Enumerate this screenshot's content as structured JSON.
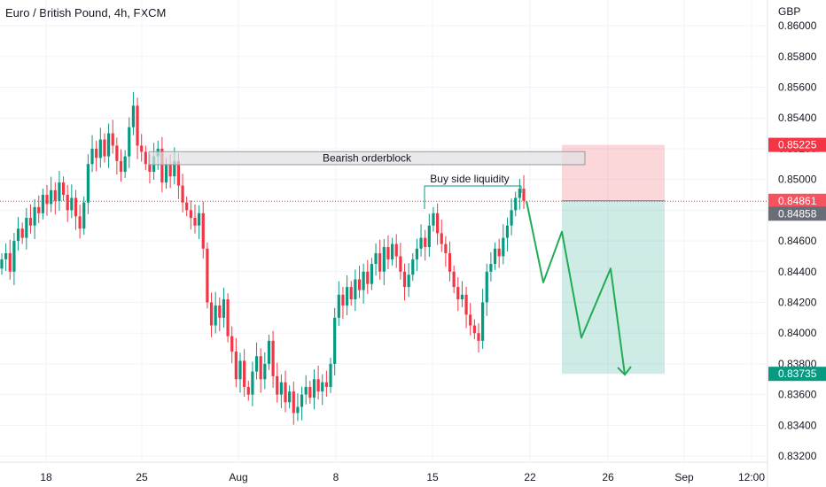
{
  "header": {
    "title": "Euro / British Pound, 4h, FXCM"
  },
  "chart_data": {
    "type": "candlestick",
    "currency_label": "GBP",
    "y_ticks": [
      "0.86000",
      "0.85800",
      "0.85600",
      "0.85400",
      "0.85200",
      "0.85000",
      "0.84800",
      "0.84600",
      "0.84400",
      "0.84200",
      "0.84000",
      "0.83800",
      "0.83600",
      "0.83400",
      "0.83200"
    ],
    "ylim": [
      0.8316,
      0.8611
    ],
    "x_ticks": [
      "18",
      "25",
      "Aug",
      "8",
      "15",
      "22",
      "26",
      "Sep",
      "12:00"
    ],
    "grid": true,
    "price_tags": {
      "stop": {
        "value": 0.85225,
        "label": "0.85225",
        "color": "#f23645"
      },
      "entry": {
        "value": 0.84861,
        "label": "0.84861",
        "color": "#f7525f"
      },
      "current": {
        "value": 0.84858,
        "label": "0.84858",
        "color": "#6a6d78"
      },
      "target": {
        "value": 0.83735,
        "label": "0.83735",
        "color": "#089981"
      }
    },
    "annotations": {
      "orderblock": {
        "text": "Bearish orderblock",
        "top": 0.85181,
        "bottom": 0.85096
      },
      "liquidity": {
        "text": "Buy side liquidity",
        "level": 0.84958
      }
    },
    "position": {
      "side": "short",
      "entry": 0.84861,
      "stop": 0.85225,
      "target": 0.83735
    },
    "projection_y": [
      0.8486,
      0.8433,
      0.8466,
      0.8397,
      0.8442,
      0.8373
    ],
    "candles_close": [
      0.8448,
      0.8452,
      0.844,
      0.846,
      0.8468,
      0.8462,
      0.8475,
      0.847,
      0.8482,
      0.8478,
      0.849,
      0.8484,
      0.8493,
      0.8486,
      0.8498,
      0.849,
      0.848,
      0.8488,
      0.8476,
      0.8468,
      0.8485,
      0.851,
      0.852,
      0.8514,
      0.8526,
      0.8515,
      0.853,
      0.8522,
      0.8512,
      0.8505,
      0.8515,
      0.8534,
      0.8548,
      0.8522,
      0.8518,
      0.851,
      0.8505,
      0.8515,
      0.852,
      0.8498,
      0.851,
      0.8502,
      0.8512,
      0.8496,
      0.8485,
      0.848,
      0.8475,
      0.847,
      0.8478,
      0.8455,
      0.842,
      0.8405,
      0.8418,
      0.841,
      0.8422,
      0.8398,
      0.8388,
      0.837,
      0.8382,
      0.8365,
      0.836,
      0.8375,
      0.8385,
      0.837,
      0.838,
      0.8395,
      0.8372,
      0.836,
      0.8368,
      0.8355,
      0.8362,
      0.8348,
      0.8352,
      0.836,
      0.8365,
      0.8358,
      0.837,
      0.8362,
      0.8368,
      0.8365,
      0.838,
      0.841,
      0.8425,
      0.8418,
      0.843,
      0.8422,
      0.8435,
      0.8428,
      0.844,
      0.8432,
      0.8445,
      0.8452,
      0.844,
      0.8456,
      0.8448,
      0.8458,
      0.845,
      0.844,
      0.843,
      0.8438,
      0.8448,
      0.8455,
      0.8462,
      0.8456,
      0.847,
      0.8478,
      0.8465,
      0.8458,
      0.8452,
      0.844,
      0.843,
      0.8422,
      0.8425,
      0.8412,
      0.8405,
      0.84,
      0.8395,
      0.842,
      0.844,
      0.8445,
      0.8455,
      0.845,
      0.8462,
      0.847,
      0.848,
      0.8488,
      0.8494,
      0.8486
    ]
  }
}
